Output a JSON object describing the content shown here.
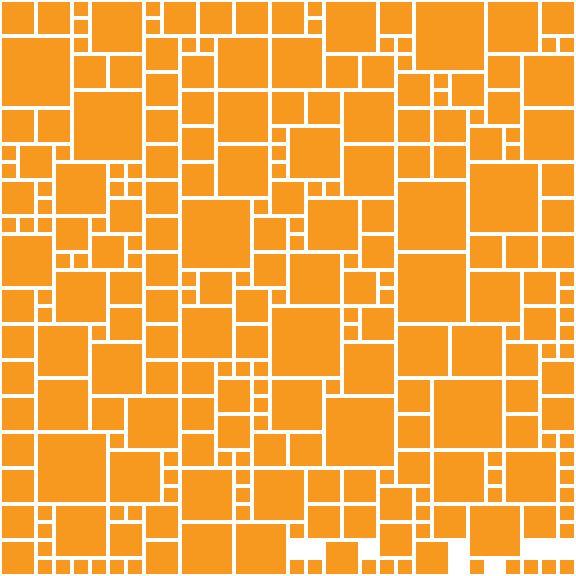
{
  "colors": {
    "background": "#ffffff",
    "tile": "#f7991e"
  },
  "pattern": {
    "description_shape": "square-tile-mosaic",
    "columns": 32,
    "rows": 32
  }
}
